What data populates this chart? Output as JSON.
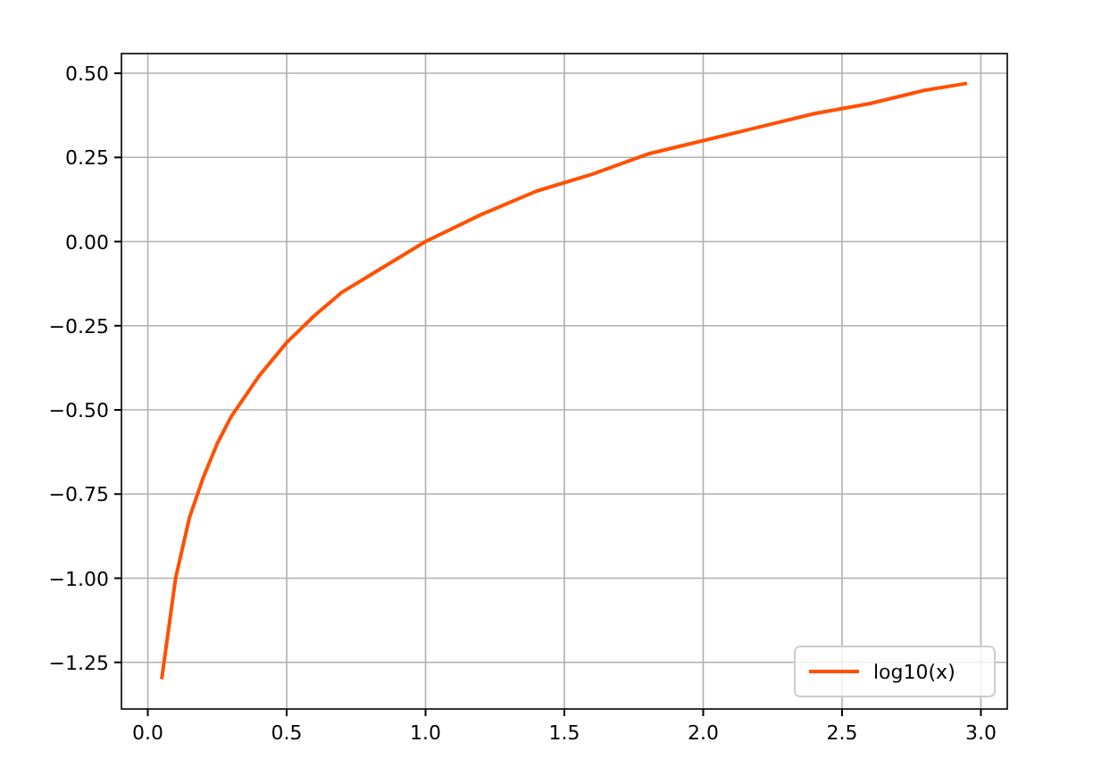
{
  "chart_data": {
    "type": "line",
    "x": [
      0.05,
      0.1,
      0.15,
      0.2,
      0.25,
      0.3,
      0.4,
      0.5,
      0.6,
      0.7,
      0.8,
      1.0,
      1.2,
      1.4,
      1.6,
      1.8,
      2.0,
      2.2,
      2.4,
      2.6,
      2.8,
      2.95
    ],
    "series": [
      {
        "name": "log10(x)",
        "color": "#ff5000",
        "values": [
          -1.3,
          -1.0,
          -0.82,
          -0.7,
          -0.6,
          -0.52,
          -0.4,
          -0.3,
          -0.22,
          -0.15,
          -0.1,
          0.0,
          0.08,
          0.15,
          0.2,
          0.26,
          0.3,
          0.34,
          0.38,
          0.41,
          0.45,
          0.47
        ]
      }
    ],
    "xlim": [
      -0.095,
      3.095
    ],
    "ylim": [
      -1.3885,
      0.5585
    ],
    "xticks": [
      {
        "value": 0,
        "label": "0.0"
      },
      {
        "value": 0.5,
        "label": "0.5"
      },
      {
        "value": 1,
        "label": "1.0"
      },
      {
        "value": 1.5,
        "label": "1.5"
      },
      {
        "value": 2,
        "label": "2.0"
      },
      {
        "value": 2.5,
        "label": "2.5"
      },
      {
        "value": 3,
        "label": "3.0"
      }
    ],
    "yticks": [
      {
        "value": 0.5,
        "label": "0.50"
      },
      {
        "value": 0.25,
        "label": "0.25"
      },
      {
        "value": 0,
        "label": "0.00"
      },
      {
        "value": -0.25,
        "label": "−0.25"
      },
      {
        "value": -0.5,
        "label": "−0.50"
      },
      {
        "value": -0.75,
        "label": "−0.75"
      },
      {
        "value": -1,
        "label": "−1.00"
      },
      {
        "value": -1.25,
        "label": "−1.25"
      }
    ],
    "grid": true,
    "legend": "bottom right",
    "line_style": "solid"
  }
}
